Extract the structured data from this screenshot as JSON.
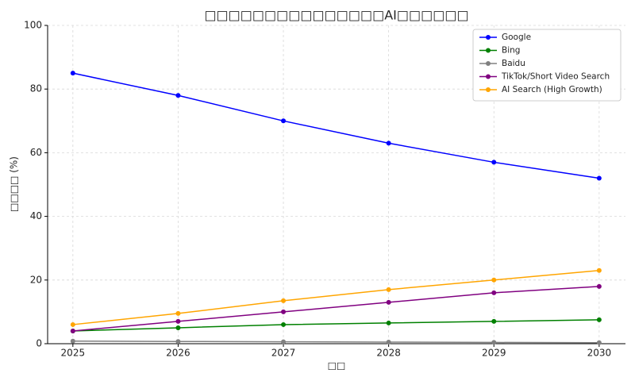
{
  "chart_data": {
    "type": "line",
    "title": "□□□□□□□□□□□□□□□AI□□□□□□",
    "x_label": "□□",
    "y_label": "□□□□ (%)",
    "x": [
      2025,
      2026,
      2027,
      2028,
      2029,
      2030
    ],
    "series": [
      {
        "name": "Google",
        "color": "#0000ff",
        "values": [
          85,
          78,
          70,
          63,
          57,
          52
        ]
      },
      {
        "name": "Bing",
        "color": "#008000",
        "values": [
          4,
          5,
          6,
          6.5,
          7,
          7.5
        ]
      },
      {
        "name": "Baidu",
        "color": "#808080",
        "values": [
          0.8,
          0.7,
          0.6,
          0.5,
          0.4,
          0.3
        ]
      },
      {
        "name": "TikTok/Short Video Search",
        "color": "#800080",
        "values": [
          4,
          7,
          10,
          13,
          16,
          18
        ]
      },
      {
        "name": "AI Search (High Growth)",
        "color": "#ffa500",
        "values": [
          6,
          9.5,
          13.5,
          17,
          20,
          23
        ]
      }
    ],
    "xlim": [
      2024.76,
      2030.25
    ],
    "xticks": [
      2025,
      2026,
      2027,
      2028,
      2029,
      2030
    ],
    "ylim": [
      0,
      100
    ],
    "yticks": [
      0,
      20,
      40,
      60,
      80,
      100
    ],
    "grid": true,
    "legend": "upper-right"
  }
}
